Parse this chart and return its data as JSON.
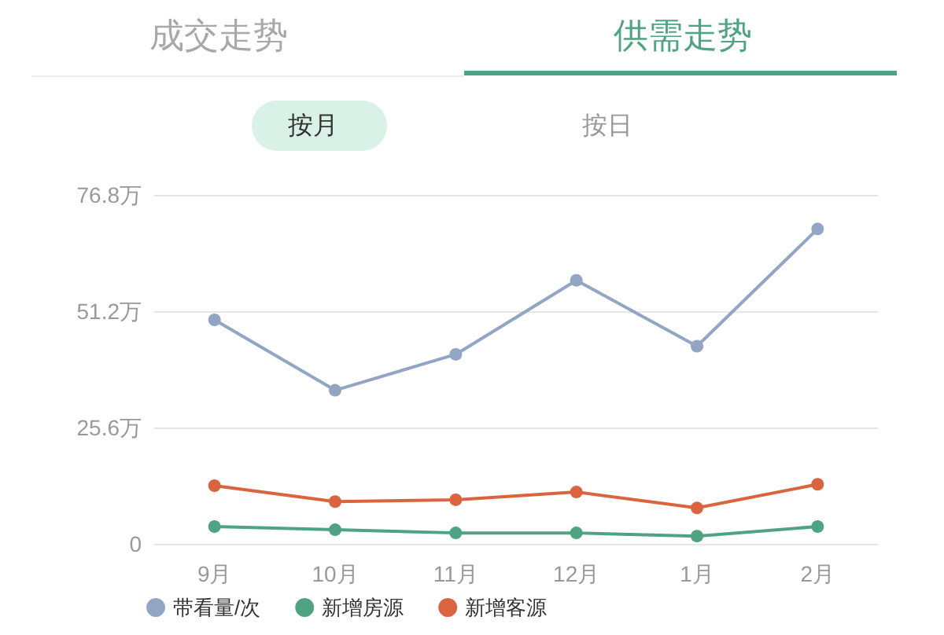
{
  "chart_data": {
    "type": "line",
    "annotations": [
      "成交走势",
      "供需走势",
      "按月",
      "按日"
    ],
    "categories": [
      "9月",
      "10月",
      "11月",
      "12月",
      "1月",
      "2月"
    ],
    "series": [
      {
        "name": "带看量/次",
        "color": "#93a5c4",
        "values": [
          49.3,
          33.8,
          41.7,
          58.0,
          43.5,
          69.3
        ]
      },
      {
        "name": "新增房源",
        "color": "#4fa383",
        "values": [
          3.8,
          3.1,
          2.4,
          2.4,
          1.7,
          3.8
        ]
      },
      {
        "name": "新增客源",
        "color": "#d9643f",
        "values": [
          12.8,
          9.3,
          9.7,
          11.4,
          7.9,
          13.1
        ]
      }
    ],
    "ylim": [
      0,
      76.8
    ],
    "yticks": [
      0,
      {
        "value": 25.6,
        "label": "25.6万"
      },
      {
        "value": 51.2,
        "label": "51.2万"
      },
      {
        "value": 76.8,
        "label": "76.8万"
      }
    ],
    "grid": "y",
    "legend": "bottom",
    "marker": "circle",
    "line_style": "solid"
  }
}
